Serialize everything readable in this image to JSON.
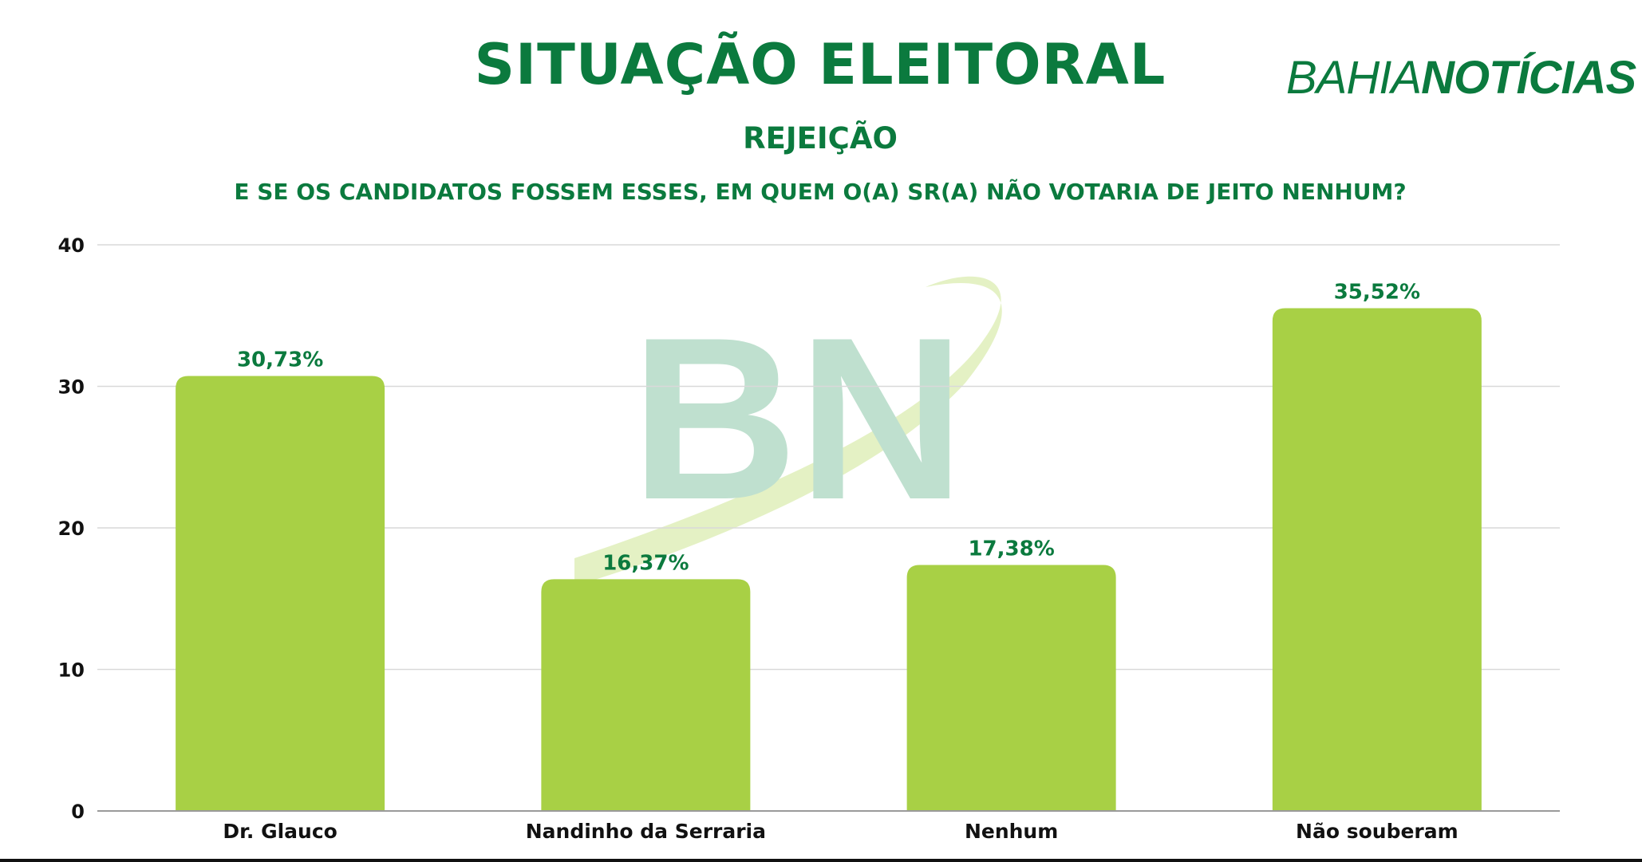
{
  "header": {
    "title": "SITUAÇÃO ELEITORAL",
    "subtitle": "REJEIÇÃO",
    "question": "E SE OS CANDIDATOS FOSSEM ESSES, EM QUEM O(A) SR(A) NÃO VOTARIA DE JEITO NENHUM?"
  },
  "logo": {
    "part1": "BAHIA",
    "part2": "NOTÍCIAS"
  },
  "watermark": {
    "text": "BN"
  },
  "colors": {
    "bar": "#a8d045",
    "title": "#0b7a3e",
    "label": "#0b7a3e",
    "axis_text": "#111111",
    "grid": "#d9d9d9",
    "watermark": "#bfe0cf",
    "swoosh": "#e4f1c4"
  },
  "chart_data": {
    "type": "bar",
    "categories": [
      "Dr. Glauco",
      "Nandinho da Serraria",
      "Nenhum",
      "Não souberam"
    ],
    "values": [
      30.73,
      16.37,
      17.38,
      35.52
    ],
    "data_labels": [
      "30,73%",
      "16,37%",
      "17,38%",
      "35,52%"
    ],
    "ylim": [
      0,
      40
    ],
    "yticks": [
      0,
      10,
      20,
      30,
      40
    ],
    "ytick_labels": [
      "0",
      "10",
      "20",
      "30",
      "40"
    ],
    "grid": true,
    "legend": "none"
  }
}
